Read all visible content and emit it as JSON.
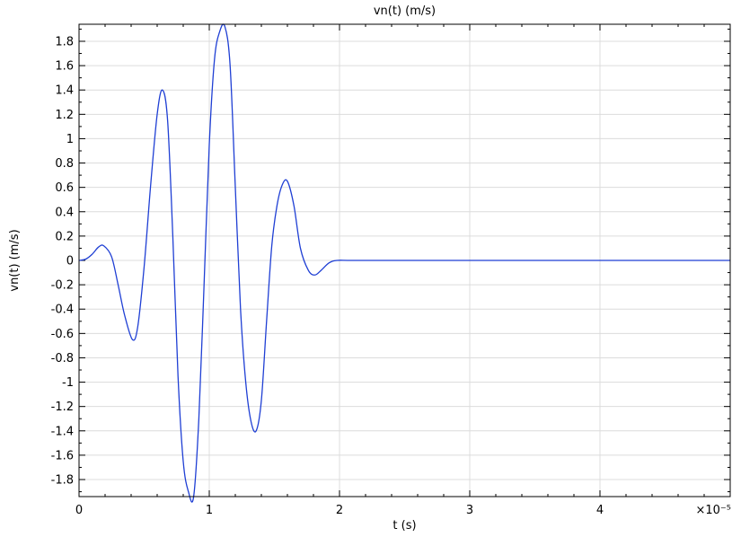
{
  "chart_data": {
    "type": "line",
    "title": "vn(t) (m/s)",
    "xlabel": "t (s)",
    "ylabel": "vn(t) (m/s)",
    "x_multiplier_label": "×10⁻⁵",
    "xlim": [
      0,
      5
    ],
    "ylim": [
      -1.94,
      1.94
    ],
    "grid": true,
    "line_color": "#1f3fd4",
    "x_ticks": [
      0,
      1,
      2,
      3,
      4
    ],
    "x_tick_labels": [
      "0",
      "1",
      "2",
      "3",
      "4"
    ],
    "y_ticks": [
      1.8,
      1.6,
      1.4,
      1.2,
      1,
      0.8,
      0.6,
      0.4,
      0.2,
      0,
      -0.2,
      -0.4,
      -0.6,
      -0.8,
      -1,
      -1.2,
      -1.4,
      -1.6,
      -1.8
    ],
    "y_tick_labels": [
      "1.8",
      "1.6",
      "1.4",
      "1.2",
      "1",
      "0.8",
      "0.6",
      "0.4",
      "0.2",
      "0",
      "-0.2",
      "-0.4",
      "-0.6",
      "-0.8",
      "-1",
      "-1.2",
      "-1.4",
      "-1.6",
      "-1.8"
    ],
    "series": [
      {
        "x": [
          0,
          0.05,
          0.1,
          0.15,
          0.19,
          0.25,
          0.3,
          0.35,
          0.41,
          0.45,
          0.5,
          0.55,
          0.6,
          0.64,
          0.68,
          0.72,
          0.76,
          0.8,
          0.84,
          0.88,
          0.92,
          0.96,
          1.0,
          1.04,
          1.08,
          1.12,
          1.16,
          1.2,
          1.24,
          1.28,
          1.32,
          1.36,
          1.4,
          1.44,
          1.48,
          1.52,
          1.56,
          1.6,
          1.65,
          1.7,
          1.76,
          1.81,
          1.86,
          1.92,
          1.98,
          2.1,
          2.5,
          3.0,
          3.5,
          4.0,
          4.5,
          5.0
        ],
        "y": [
          0,
          0.01,
          0.05,
          0.11,
          0.12,
          0.03,
          -0.2,
          -0.45,
          -0.65,
          -0.55,
          -0.05,
          0.62,
          1.2,
          1.4,
          1.15,
          0.2,
          -0.95,
          -1.65,
          -1.9,
          -1.94,
          -1.3,
          -0.2,
          0.95,
          1.65,
          1.88,
          1.92,
          1.6,
          0.6,
          -0.4,
          -1.0,
          -1.32,
          -1.4,
          -1.15,
          -0.5,
          0.12,
          0.45,
          0.62,
          0.65,
          0.45,
          0.1,
          -0.08,
          -0.12,
          -0.08,
          -0.02,
          0,
          0,
          0,
          0,
          0,
          0,
          0,
          0
        ]
      }
    ]
  }
}
